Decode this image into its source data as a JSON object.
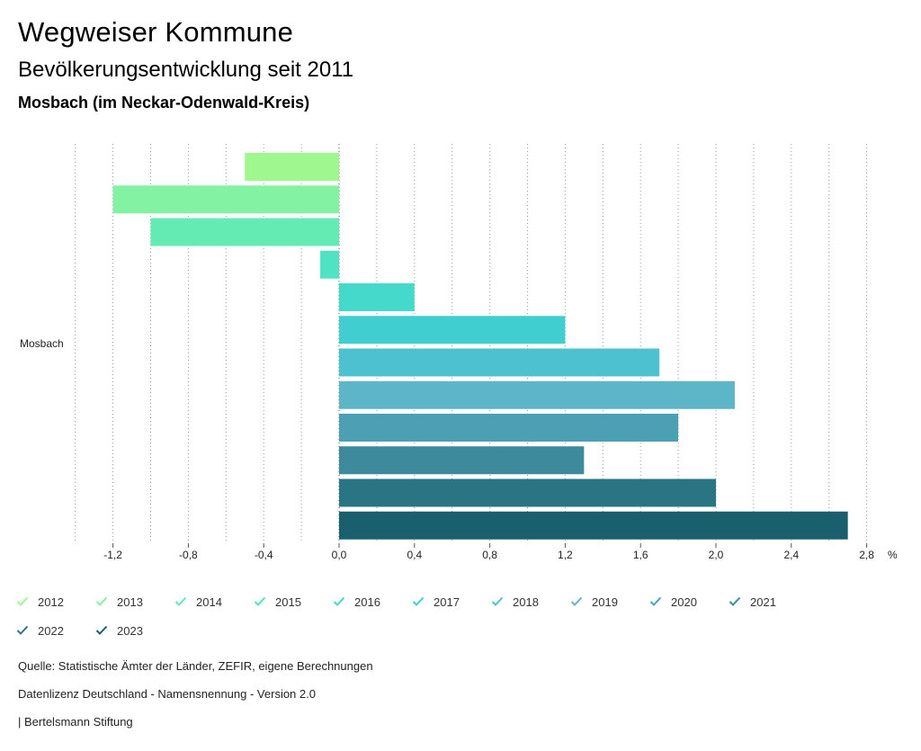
{
  "header": {
    "title": "Wegweiser Kommune",
    "subtitle": "Bevölkerungsentwicklung seit 2011",
    "region": "Mosbach (im Neckar-Odenwald-Kreis)"
  },
  "chart_data": {
    "type": "bar",
    "orientation": "horizontal",
    "category_label": "Mosbach",
    "unit": "%",
    "xlim": [
      -1.4,
      2.9
    ],
    "ticks": [
      -1.2,
      -0.8,
      -0.4,
      0.0,
      0.4,
      0.8,
      1.2,
      1.6,
      2.0,
      2.4,
      2.8
    ],
    "tick_labels": [
      "-1,2",
      "-0,8",
      "-0,4",
      "0,0",
      "0,4",
      "0,8",
      "1,2",
      "1,6",
      "2,0",
      "2,4",
      "2,8"
    ],
    "series": [
      {
        "name": "2012",
        "value": -0.5,
        "color": "#9ef78f"
      },
      {
        "name": "2013",
        "value": -1.2,
        "color": "#83f2a3"
      },
      {
        "name": "2014",
        "value": -1.0,
        "color": "#64ebb3"
      },
      {
        "name": "2015",
        "value": -0.1,
        "color": "#4fe3c3"
      },
      {
        "name": "2016",
        "value": 0.4,
        "color": "#43d9cb"
      },
      {
        "name": "2017",
        "value": 1.2,
        "color": "#41ced0"
      },
      {
        "name": "2018",
        "value": 1.7,
        "color": "#4dc1d0"
      },
      {
        "name": "2019",
        "value": 2.1,
        "color": "#5db5c8"
      },
      {
        "name": "2020",
        "value": 1.8,
        "color": "#4da0b3"
      },
      {
        "name": "2021",
        "value": 1.3,
        "color": "#3c8a9c"
      },
      {
        "name": "2022",
        "value": 2.0,
        "color": "#2a7584"
      },
      {
        "name": "2023",
        "value": 2.7,
        "color": "#195f6e"
      }
    ]
  },
  "footer": {
    "source": "Quelle: Statistische Ämter der Länder, ZEFIR, eigene Berechnungen",
    "license": "Datenlizenz Deutschland - Namensnennung - Version 2.0",
    "publisher": "| Bertelsmann Stiftung"
  }
}
